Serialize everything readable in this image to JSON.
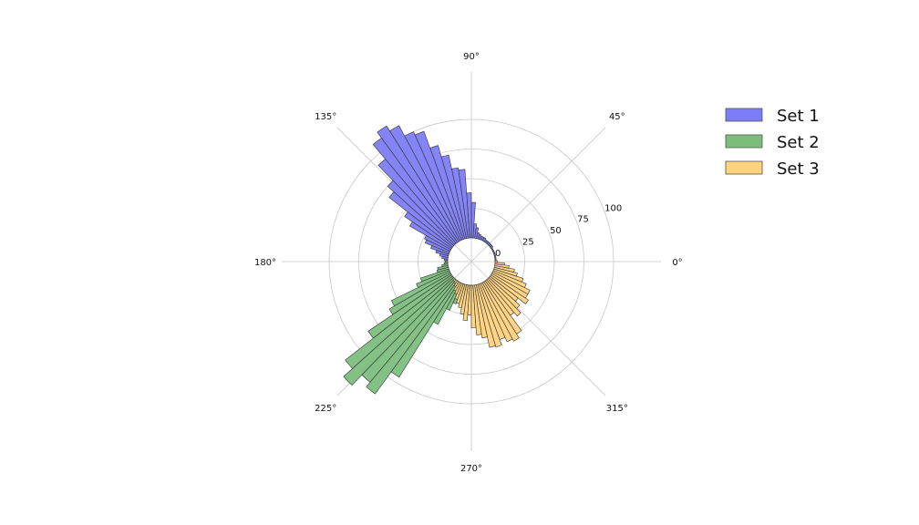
{
  "chart_data": {
    "type": "polar-bar",
    "angle_unit": "degrees",
    "bar_width_deg": 4,
    "radial_origin": -20,
    "rlim": [
      -20,
      120
    ],
    "rticks": [
      0,
      25,
      50,
      75,
      100
    ],
    "angle_ticks": [
      "0°",
      "45°",
      "90°",
      "135°",
      "180°",
      "225°",
      "270°",
      "315°"
    ],
    "grid": true,
    "legend": "top-right",
    "series": [
      {
        "name": "Set 1",
        "color": "#7d7df5",
        "theta": [
          0,
          4,
          8,
          12,
          16,
          20,
          24,
          28,
          32,
          36,
          40,
          44,
          48,
          52,
          56,
          60,
          64,
          68,
          72,
          76,
          80,
          84,
          88,
          92,
          96,
          100,
          104,
          108,
          112,
          116,
          120,
          124,
          128,
          132,
          136,
          140,
          144,
          148,
          152,
          156,
          160,
          164,
          168,
          172,
          176,
          180
        ],
        "values": [
          1,
          1,
          1,
          1,
          1,
          1,
          1,
          1,
          1,
          2,
          2,
          2,
          2,
          2,
          2,
          3,
          3,
          3,
          4,
          5,
          9,
          12,
          30,
          38,
          58,
          60,
          72,
          82,
          97,
          100,
          110,
          115,
          109,
          93,
          75,
          68,
          48,
          40,
          24,
          22,
          16,
          11,
          7,
          5,
          3,
          2
        ]
      },
      {
        "name": "Set 2",
        "color": "#7dbe7d",
        "theta": [
          180,
          184,
          188,
          192,
          196,
          200,
          204,
          208,
          212,
          216,
          220,
          224,
          228,
          232,
          236,
          240,
          244,
          248,
          252,
          256,
          260,
          264,
          268,
          272
        ],
        "values": [
          2,
          3,
          5,
          9,
          10,
          25,
          30,
          55,
          60,
          85,
          115,
          125,
          113,
          118,
          95,
          40,
          25,
          18,
          12,
          8,
          5,
          3,
          2,
          1
        ]
      },
      {
        "name": "Set 3",
        "color": "#ffd27d",
        "theta": [
          228,
          232,
          236,
          240,
          244,
          248,
          252,
          256,
          260,
          264,
          268,
          272,
          276,
          280,
          284,
          288,
          292,
          296,
          300,
          304,
          308,
          312,
          316,
          320,
          324,
          328,
          332,
          336,
          340,
          344,
          348,
          352,
          356,
          360
        ],
        "values": [
          2,
          3,
          5,
          8,
          10,
          14,
          17,
          20,
          25,
          30,
          25,
          36,
          42,
          45,
          54,
          55,
          50,
          54,
          56,
          52,
          36,
          40,
          35,
          30,
          38,
          35,
          35,
          30,
          26,
          20,
          17,
          12,
          8,
          2
        ]
      }
    ]
  },
  "legend": {
    "items": [
      {
        "label": "Set 1",
        "color": "#7d7df5"
      },
      {
        "label": "Set 2",
        "color": "#7dbe7d"
      },
      {
        "label": "Set 3",
        "color": "#ffd27d"
      }
    ]
  }
}
